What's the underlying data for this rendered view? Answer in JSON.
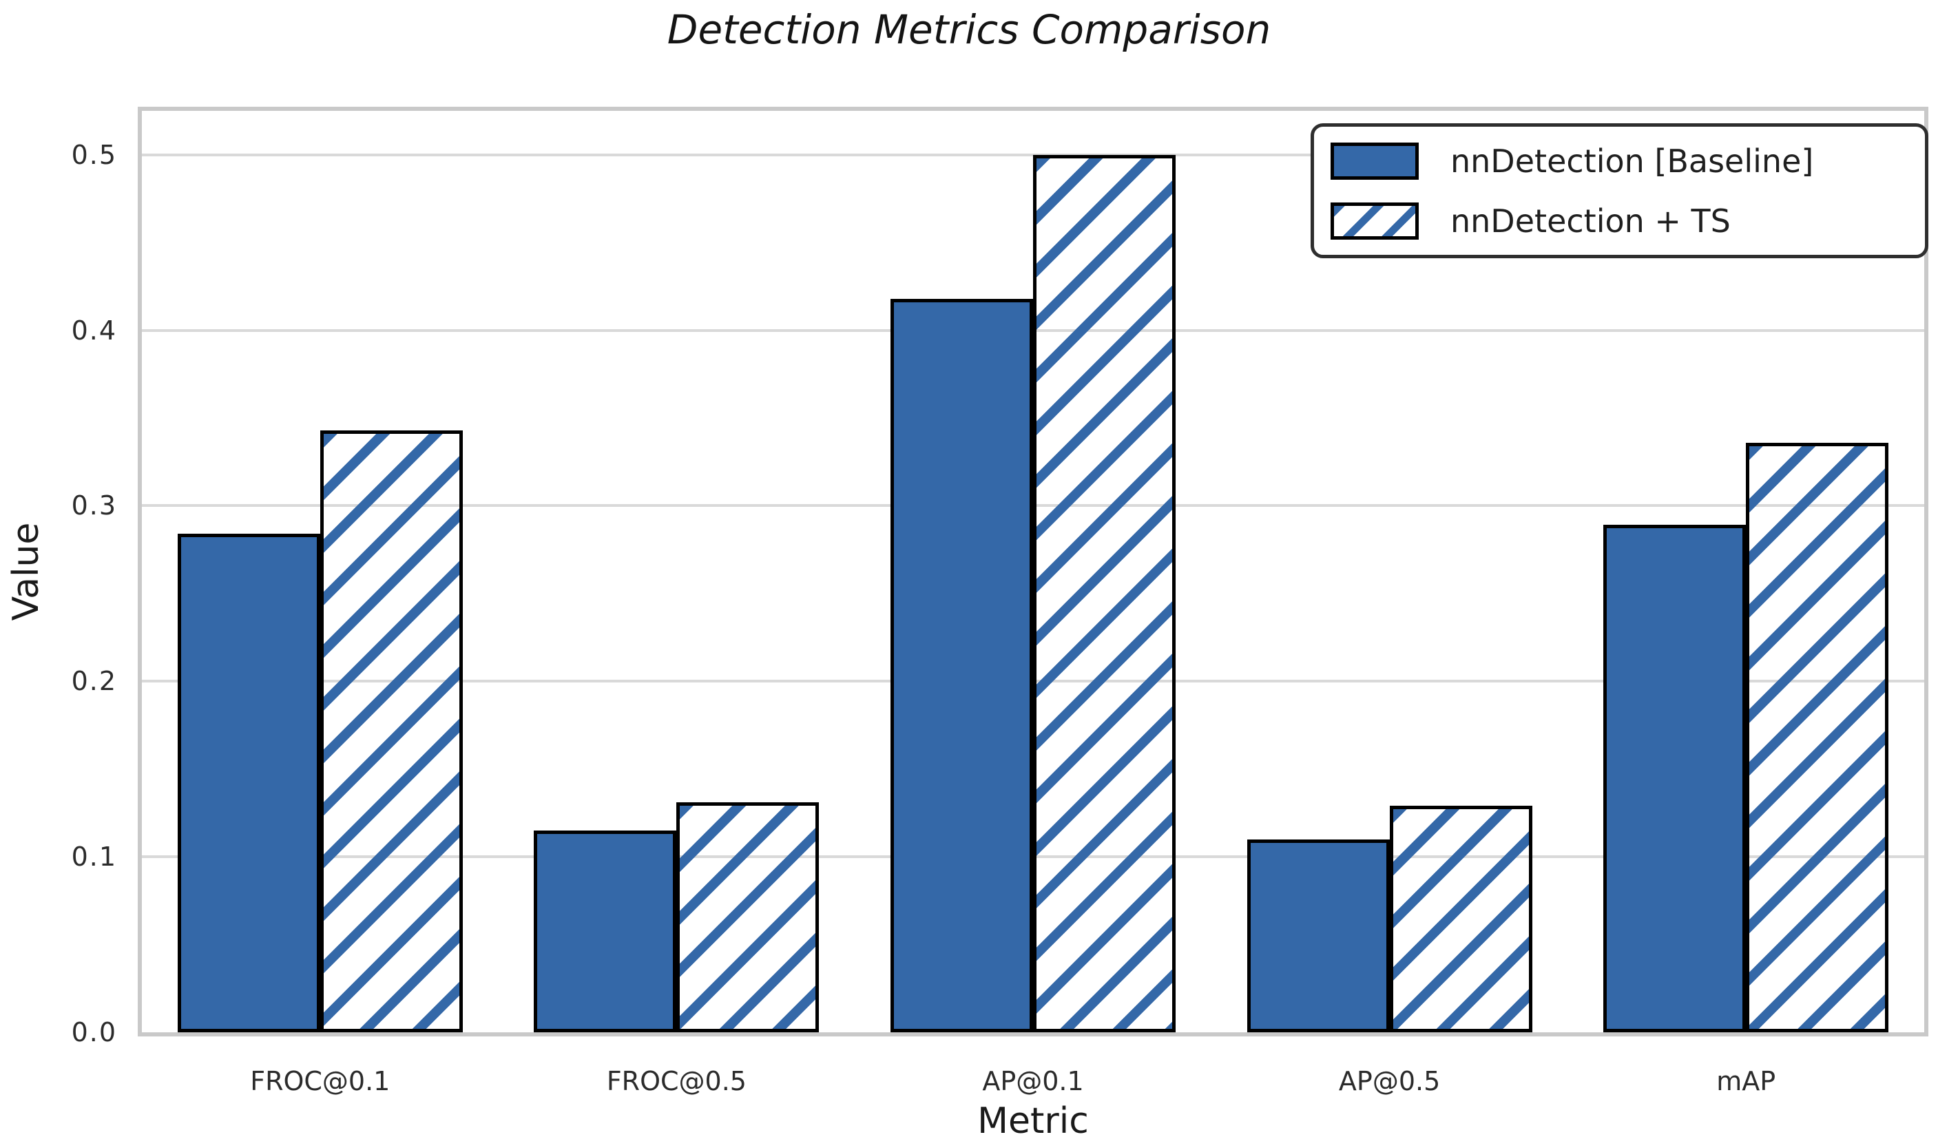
{
  "chart_data": {
    "type": "bar",
    "title": "Detection Metrics Comparison",
    "xlabel": "Metric",
    "ylabel": "Value",
    "categories": [
      "FROC@0.1",
      "FROC@0.5",
      "AP@0.1",
      "AP@0.5",
      "mAP"
    ],
    "series": [
      {
        "name": "nnDetection [Baseline]",
        "style": "solid",
        "values": [
          0.284,
          0.115,
          0.418,
          0.11,
          0.289
        ]
      },
      {
        "name": "nnDetection + TS",
        "style": "hatched",
        "values": [
          0.343,
          0.131,
          0.5,
          0.129,
          0.336
        ]
      }
    ],
    "yticks": [
      0.0,
      0.1,
      0.2,
      0.3,
      0.4,
      0.5
    ],
    "ytick_labels": [
      "0.0",
      "0.1",
      "0.2",
      "0.3",
      "0.4",
      "0.5"
    ],
    "ylim": [
      0,
      0.525
    ],
    "grid": true,
    "legend_position": "upper right",
    "bar_group_width_fraction": 0.8,
    "colors": {
      "bar_fill": "#3468a8",
      "hatch": "#3468a8",
      "bar_edge": "#000000",
      "grid": "#d9d9d9",
      "spine": "#c9c9c9",
      "text": "#2b2b2b",
      "legend_border": "#2e2e2e"
    }
  }
}
